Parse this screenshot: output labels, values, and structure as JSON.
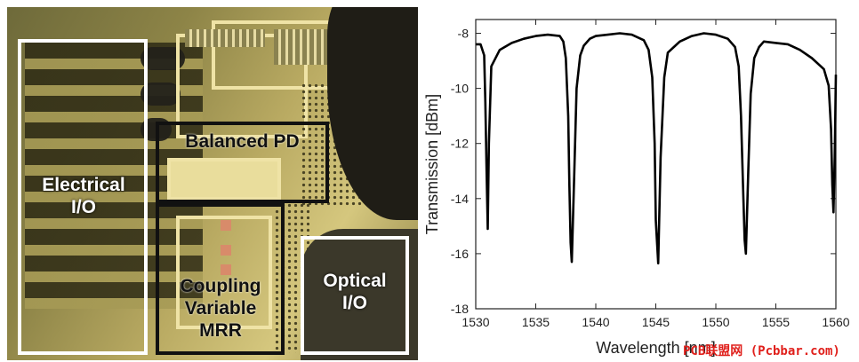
{
  "figure": {
    "annotations": {
      "electrical_io": "Electrical\nI/O",
      "balanced_pd": "Balanced PD",
      "coupling_mrr": "Coupling\nVariable\nMRR",
      "optical_io": "Optical\nI/O"
    },
    "annotation_colors": {
      "white_boxes": "#ffffff",
      "black_boxes": "#111111"
    },
    "watermark": "PCB联盟网 (Pcbbar.com)"
  },
  "chart_data": {
    "type": "line",
    "title": "",
    "xlabel": "Wavelength [nm]",
    "ylabel": "Transmission [dBm]",
    "xlim": [
      1530,
      1560
    ],
    "ylim": [
      -18,
      -7.5
    ],
    "xticks": [
      1530,
      1535,
      1540,
      1545,
      1550,
      1555,
      1560
    ],
    "yticks": [
      -18,
      -16,
      -14,
      -12,
      -10,
      -8
    ],
    "grid": false,
    "line_color": "#000000",
    "series": [
      {
        "name": "",
        "x": [
          1530.0,
          1530.4,
          1530.7,
          1530.8,
          1530.9,
          1531.0,
          1531.1,
          1531.3,
          1532.0,
          1533.0,
          1534.0,
          1535.0,
          1536.0,
          1537.0,
          1537.3,
          1537.5,
          1537.7,
          1537.8,
          1537.9,
          1538.0,
          1538.2,
          1538.4,
          1538.7,
          1539.0,
          1539.5,
          1540.0,
          1541.0,
          1542.0,
          1543.0,
          1544.0,
          1544.4,
          1544.7,
          1544.9,
          1545.0,
          1545.2,
          1545.4,
          1545.7,
          1546.0,
          1547.0,
          1548.0,
          1549.0,
          1550.0,
          1551.0,
          1551.6,
          1551.9,
          1552.1,
          1552.3,
          1552.4,
          1552.5,
          1552.7,
          1552.9,
          1553.2,
          1553.6,
          1554.0,
          1555.0,
          1556.0,
          1557.0,
          1558.0,
          1559.0,
          1559.4,
          1559.6,
          1559.7,
          1559.8,
          1559.9,
          1560.0
        ],
        "y": [
          -8.4,
          -8.4,
          -8.8,
          -10.5,
          -13.0,
          -15.1,
          -12.0,
          -9.2,
          -8.6,
          -8.35,
          -8.2,
          -8.1,
          -8.05,
          -8.1,
          -8.3,
          -8.9,
          -11.0,
          -13.5,
          -15.6,
          -16.3,
          -13.2,
          -10.0,
          -8.8,
          -8.45,
          -8.2,
          -8.1,
          -8.05,
          -8.0,
          -8.05,
          -8.25,
          -8.6,
          -9.6,
          -12.0,
          -14.8,
          -16.35,
          -12.5,
          -9.6,
          -8.7,
          -8.3,
          -8.1,
          -8.0,
          -8.05,
          -8.2,
          -8.5,
          -9.2,
          -11.0,
          -14.0,
          -15.5,
          -16.0,
          -13.0,
          -10.2,
          -8.9,
          -8.5,
          -8.3,
          -8.35,
          -8.4,
          -8.6,
          -8.9,
          -9.3,
          -9.9,
          -11.5,
          -13.5,
          -14.5,
          -12.5,
          -9.5
        ]
      }
    ]
  }
}
